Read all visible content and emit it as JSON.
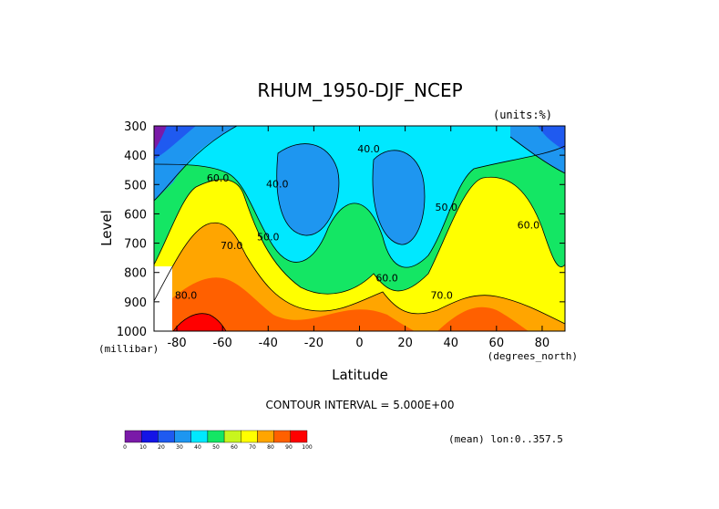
{
  "chart_data": {
    "type": "heatmap",
    "title": "RHUM_1950-DJF_NCEP",
    "units_label": "(units:%)",
    "xlabel": "Latitude",
    "ylabel": "Level",
    "x_unit_label": "(degrees_north)",
    "y_unit_label": "(millibar)",
    "x_ticks": [
      "-80",
      "-60",
      "-40",
      "-20",
      "0",
      "20",
      "40",
      "60",
      "80"
    ],
    "x_tick_values": [
      -80,
      -60,
      -40,
      -20,
      0,
      20,
      40,
      60,
      80
    ],
    "y_ticks": [
      "300",
      "400",
      "500",
      "600",
      "700",
      "800",
      "900",
      "1000"
    ],
    "y_tick_values": [
      300,
      400,
      500,
      600,
      700,
      800,
      900,
      1000
    ],
    "xlim": [
      -90,
      90
    ],
    "ylim": [
      300,
      1000
    ],
    "contour_interval_text": "CONTOUR INTERVAL = 5.000E+00",
    "mean_text": "(mean) lon:0..357.5",
    "colorbar_levels": [
      "0",
      "10",
      "20",
      "30",
      "40",
      "50",
      "60",
      "70",
      "80",
      "90",
      "100"
    ],
    "colorbar_colors": [
      "#7a1aa8",
      "#1414e6",
      "#1f5af0",
      "#1e96f0",
      "#00e8ff",
      "#14e664",
      "#c8f51e",
      "#ffff00",
      "#ffa500",
      "#ff6000",
      "#ff0000"
    ],
    "contour_labels": [
      {
        "text": "60.0",
        "x": -62,
        "y": 490
      },
      {
        "text": "40.0",
        "x": -36,
        "y": 510
      },
      {
        "text": "40.0",
        "x": 4,
        "y": 390
      },
      {
        "text": "50.0",
        "x": -40,
        "y": 690
      },
      {
        "text": "70.0",
        "x": -56,
        "y": 720
      },
      {
        "text": "80.0",
        "x": -76,
        "y": 890
      },
      {
        "text": "60.0",
        "x": 12,
        "y": 830
      },
      {
        "text": "50.0",
        "x": 38,
        "y": 590
      },
      {
        "text": "70.0",
        "x": 36,
        "y": 890
      },
      {
        "text": "60.0",
        "x": 74,
        "y": 650
      }
    ]
  }
}
